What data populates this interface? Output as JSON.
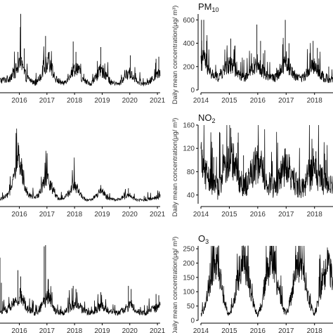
{
  "figure": {
    "colors": {
      "line": "#000000",
      "axis": "#000000",
      "text": "#333333",
      "background": "#ffffff"
    }
  },
  "chart_data": [
    {
      "id": "left-top",
      "type": "line",
      "title": "",
      "x_ticks": [
        "2016",
        "2017",
        "2018",
        "2019",
        "2020",
        "2021"
      ],
      "x_range": [
        2015.3,
        2021.1
      ],
      "y_range": [
        0,
        130
      ],
      "y_ticks": [],
      "series": [
        {
          "anchors": [
            [
              2015.3,
              12
            ],
            [
              2015.6,
              14
            ],
            [
              2015.95,
              28
            ],
            [
              2016.05,
              35
            ],
            [
              2016.25,
              16
            ],
            [
              2016.6,
              8
            ],
            [
              2016.95,
              30
            ],
            [
              2017.05,
              40
            ],
            [
              2017.3,
              14
            ],
            [
              2017.6,
              8
            ],
            [
              2017.95,
              26
            ],
            [
              2018.1,
              30
            ],
            [
              2018.3,
              12
            ],
            [
              2018.6,
              8
            ],
            [
              2018.95,
              25
            ],
            [
              2019.1,
              22
            ],
            [
              2019.3,
              10
            ],
            [
              2019.6,
              7
            ],
            [
              2019.95,
              22
            ],
            [
              2020.05,
              20
            ],
            [
              2020.3,
              9
            ],
            [
              2020.6,
              7
            ],
            [
              2020.95,
              18
            ],
            [
              2021.05,
              20
            ]
          ],
          "spikes": [
            [
              2015.2,
              55
            ],
            [
              2015.95,
              55
            ],
            [
              2016.05,
              110
            ],
            [
              2016.18,
              60
            ],
            [
              2016.95,
              78
            ],
            [
              2017.08,
              55
            ],
            [
              2017.95,
              70
            ],
            [
              2018.05,
              55
            ],
            [
              2018.95,
              62
            ],
            [
              2020.02,
              50
            ],
            [
              2020.95,
              45
            ],
            [
              2021.05,
              48
            ]
          ]
        }
      ]
    },
    {
      "id": "pm10",
      "type": "line",
      "title": "PM",
      "title_sub": "10",
      "ylabel": "Daily mean concentration(μg/ m³)",
      "x_ticks": [
        "2014",
        "2015",
        "2016",
        "2017",
        "2018"
      ],
      "x_range": [
        2014,
        2018.65
      ],
      "y_range": [
        0,
        650
      ],
      "y_ticks": [
        "0",
        "200",
        "400",
        "600"
      ],
      "series": [
        {
          "anchors": [
            [
              2014.0,
              140
            ],
            [
              2014.1,
              260
            ],
            [
              2014.3,
              130
            ],
            [
              2014.6,
              95
            ],
            [
              2014.95,
              180
            ],
            [
              2015.1,
              200
            ],
            [
              2015.3,
              120
            ],
            [
              2015.6,
              95
            ],
            [
              2015.95,
              210
            ],
            [
              2016.1,
              160
            ],
            [
              2016.35,
              110
            ],
            [
              2016.6,
              90
            ],
            [
              2016.95,
              200
            ],
            [
              2017.1,
              180
            ],
            [
              2017.3,
              110
            ],
            [
              2017.6,
              90
            ],
            [
              2017.95,
              190
            ],
            [
              2018.1,
              150
            ],
            [
              2018.3,
              100
            ],
            [
              2018.6,
              75
            ]
          ],
          "spikes": [
            [
              2014.02,
              600
            ],
            [
              2014.1,
              600
            ],
            [
              2014.2,
              420
            ],
            [
              2015.05,
              440
            ],
            [
              2015.2,
              380
            ],
            [
              2015.97,
              560
            ],
            [
              2016.1,
              420
            ],
            [
              2016.25,
              340
            ],
            [
              2016.97,
              600
            ],
            [
              2017.1,
              400
            ],
            [
              2017.95,
              420
            ],
            [
              2018.1,
              360
            ],
            [
              2018.5,
              200
            ]
          ]
        }
      ]
    },
    {
      "id": "left-middle",
      "type": "line",
      "title": "",
      "x_ticks": [
        "2016",
        "2017",
        "2018",
        "2019",
        "2020",
        "2021"
      ],
      "x_range": [
        2015.3,
        2021.1
      ],
      "y_range": [
        0,
        130
      ],
      "y_ticks": [],
      "series": [
        {
          "anchors": [
            [
              2015.3,
              6
            ],
            [
              2015.6,
              12
            ],
            [
              2015.8,
              36
            ],
            [
              2015.95,
              65
            ],
            [
              2016.1,
              45
            ],
            [
              2016.3,
              14
            ],
            [
              2016.6,
              8
            ],
            [
              2016.8,
              22
            ],
            [
              2017.0,
              36
            ],
            [
              2017.2,
              22
            ],
            [
              2017.4,
              8
            ],
            [
              2017.6,
              6
            ],
            [
              2017.85,
              18
            ],
            [
              2018.0,
              28
            ],
            [
              2018.2,
              14
            ],
            [
              2018.4,
              6
            ],
            [
              2018.6,
              5
            ],
            [
              2018.85,
              14
            ],
            [
              2019.0,
              18
            ],
            [
              2019.2,
              8
            ],
            [
              2019.5,
              5
            ],
            [
              2019.85,
              10
            ],
            [
              2020.0,
              12
            ],
            [
              2020.2,
              6
            ],
            [
              2020.5,
              5
            ],
            [
              2020.85,
              8
            ],
            [
              2021.05,
              10
            ]
          ],
          "spikes": [
            [
              2015.9,
              72
            ],
            [
              2016.0,
              80
            ],
            [
              2016.1,
              62
            ],
            [
              2016.98,
              44
            ],
            [
              2017.95,
              32
            ],
            [
              2018.95,
              30
            ],
            [
              2019.95,
              25
            ],
            [
              2021.05,
              17
            ]
          ]
        }
      ]
    },
    {
      "id": "no2",
      "type": "line",
      "title": "NO",
      "title_sub": "2",
      "ylabel": "Daily mean concentration(μg/ m³)",
      "x_ticks": [
        "2014",
        "2015",
        "2016",
        "2017",
        "2018"
      ],
      "x_range": [
        2014,
        2018.65
      ],
      "y_range": [
        25,
        160
      ],
      "y_ticks": [
        "40",
        "80",
        "120",
        "160"
      ],
      "series": [
        {
          "anchors": [
            [
              2014.0,
              85
            ],
            [
              2014.15,
              72
            ],
            [
              2014.35,
              55
            ],
            [
              2014.6,
              45
            ],
            [
              2014.95,
              90
            ],
            [
              2015.1,
              95
            ],
            [
              2015.3,
              65
            ],
            [
              2015.55,
              48
            ],
            [
              2015.9,
              80
            ],
            [
              2016.05,
              75
            ],
            [
              2016.35,
              55
            ],
            [
              2016.6,
              45
            ],
            [
              2016.95,
              78
            ],
            [
              2017.1,
              70
            ],
            [
              2017.35,
              52
            ],
            [
              2017.6,
              45
            ],
            [
              2017.95,
              72
            ],
            [
              2018.15,
              65
            ],
            [
              2018.4,
              52
            ],
            [
              2018.6,
              48
            ]
          ],
          "spikes": [
            [
              2014.05,
              118
            ],
            [
              2014.45,
              105
            ],
            [
              2014.97,
              120
            ],
            [
              2015.05,
              155
            ],
            [
              2015.3,
              130
            ],
            [
              2015.5,
              108
            ],
            [
              2016.0,
              125
            ],
            [
              2016.2,
              105
            ],
            [
              2016.97,
              120
            ],
            [
              2017.1,
              110
            ],
            [
              2017.95,
              120
            ],
            [
              2018.05,
              115
            ],
            [
              2018.4,
              100
            ]
          ]
        }
      ]
    },
    {
      "id": "left-bottom",
      "type": "line",
      "title": "",
      "x_ticks": [
        "2016",
        "2017",
        "2018",
        "2019",
        "2020",
        "2021"
      ],
      "x_range": [
        2015.3,
        2021.1
      ],
      "y_range": [
        0,
        130
      ],
      "y_ticks": [],
      "series": [
        {
          "anchors": [
            [
              2015.3,
              12
            ],
            [
              2015.6,
              16
            ],
            [
              2015.95,
              30
            ],
            [
              2016.05,
              35
            ],
            [
              2016.3,
              16
            ],
            [
              2016.6,
              10
            ],
            [
              2016.95,
              28
            ],
            [
              2017.05,
              35
            ],
            [
              2017.3,
              14
            ],
            [
              2017.6,
              10
            ],
            [
              2017.95,
              22
            ],
            [
              2018.1,
              25
            ],
            [
              2018.3,
              14
            ],
            [
              2018.6,
              10
            ],
            [
              2018.95,
              20
            ],
            [
              2019.1,
              18
            ],
            [
              2019.3,
              12
            ],
            [
              2019.6,
              10
            ],
            [
              2019.95,
              20
            ],
            [
              2020.05,
              22
            ],
            [
              2020.3,
              12
            ],
            [
              2020.6,
              10
            ],
            [
              2020.95,
              18
            ],
            [
              2021.05,
              20
            ]
          ],
          "spikes": [
            [
              2015.3,
              100
            ],
            [
              2015.35,
              60
            ],
            [
              2015.95,
              80
            ],
            [
              2016.05,
              70
            ],
            [
              2016.9,
              118
            ],
            [
              2016.95,
              120
            ],
            [
              2017.05,
              65
            ],
            [
              2017.95,
              55
            ],
            [
              2018.05,
              50
            ],
            [
              2018.95,
              45
            ],
            [
              2019.95,
              55
            ],
            [
              2020.05,
              50
            ],
            [
              2020.95,
              42
            ],
            [
              2021.05,
              40
            ]
          ]
        }
      ]
    },
    {
      "id": "o3",
      "type": "line",
      "title": "O",
      "title_sub": "3",
      "ylabel": "Daily mean concentration(μg/ m³)",
      "x_ticks": [
        "2014",
        "2015",
        "2016",
        "2017",
        "2018"
      ],
      "x_range": [
        2014,
        2018.65
      ],
      "y_range": [
        0,
        260
      ],
      "y_ticks": [
        "0",
        "50",
        "100",
        "150",
        "200",
        "250"
      ],
      "series": [
        {
          "anchors": [
            [
              2014.0,
              15
            ],
            [
              2014.15,
              45
            ],
            [
              2014.3,
              120
            ],
            [
              2014.45,
              185
            ],
            [
              2014.6,
              170
            ],
            [
              2014.75,
              90
            ],
            [
              2014.9,
              35
            ],
            [
              2015.0,
              15
            ],
            [
              2015.15,
              50
            ],
            [
              2015.3,
              130
            ],
            [
              2015.45,
              190
            ],
            [
              2015.6,
              170
            ],
            [
              2015.75,
              90
            ],
            [
              2015.9,
              35
            ],
            [
              2016.0,
              15
            ],
            [
              2016.15,
              55
            ],
            [
              2016.3,
              140
            ],
            [
              2016.45,
              195
            ],
            [
              2016.6,
              165
            ],
            [
              2016.75,
              85
            ],
            [
              2016.9,
              35
            ],
            [
              2017.0,
              20
            ],
            [
              2017.15,
              60
            ],
            [
              2017.3,
              140
            ],
            [
              2017.45,
              185
            ],
            [
              2017.6,
              160
            ],
            [
              2017.75,
              85
            ],
            [
              2017.9,
              35
            ],
            [
              2018.0,
              20
            ],
            [
              2018.15,
              60
            ],
            [
              2018.3,
              130
            ],
            [
              2018.45,
              170
            ],
            [
              2018.6,
              150
            ]
          ],
          "spikes": [
            [
              2014.45,
              255
            ],
            [
              2014.55,
              230
            ],
            [
              2015.45,
              245
            ],
            [
              2015.55,
              220
            ],
            [
              2016.45,
              240
            ],
            [
              2016.6,
              210
            ],
            [
              2017.45,
              230
            ],
            [
              2017.55,
              215
            ],
            [
              2018.45,
              210
            ],
            [
              2018.55,
              195
            ]
          ]
        }
      ]
    }
  ]
}
